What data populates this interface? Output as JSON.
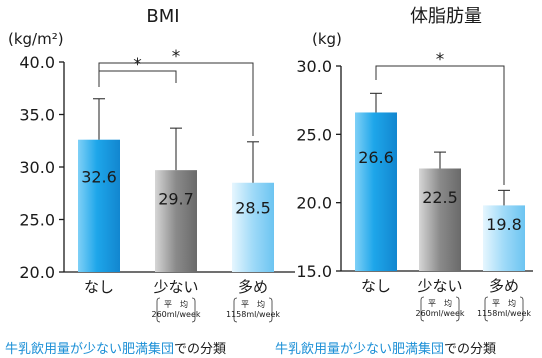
{
  "colors": {
    "bar_none": "#1ea6ea",
    "bar_less": "#8a8a8a",
    "bar_more": "#8fd3f7",
    "axis": "#1a1a1a",
    "caption_blue": "#1b8fd6"
  },
  "chart_data": [
    {
      "type": "bar",
      "title": "BMI",
      "unit": "(kg/m²)",
      "categories": [
        "なし",
        "少ない",
        "多め"
      ],
      "category_notes": [
        "",
        "平　均 260ml/week",
        "平　均 1158ml/week"
      ],
      "values": [
        32.6,
        29.7,
        28.5
      ],
      "value_labels": [
        "32.6",
        "29.7",
        "28.5"
      ],
      "error": [
        3.9,
        4.0,
        3.9
      ],
      "ylim": [
        20.0,
        40.0
      ],
      "yticks": [
        "20.0",
        "25.0",
        "30.0",
        "35.0",
        "40.0"
      ],
      "significance": [
        {
          "from": 0,
          "to": 1,
          "label": "*"
        },
        {
          "from": 0,
          "to": 2,
          "label": "*"
        }
      ],
      "caption_parts": [
        {
          "text": "牛乳飲用量が少ない肥満集団",
          "color": "blue"
        },
        {
          "text": "での分類",
          "color": "dark"
        }
      ]
    },
    {
      "type": "bar",
      "title": "体脂肪量",
      "unit": "(kg)",
      "categories": [
        "なし",
        "少ない",
        "多め"
      ],
      "category_notes": [
        "",
        "平　均 260ml/week",
        "平　均 1158ml/week"
      ],
      "values": [
        26.6,
        22.5,
        19.8
      ],
      "value_labels": [
        "26.6",
        "22.5",
        "19.8"
      ],
      "error": [
        1.4,
        1.2,
        1.1
      ],
      "ylim": [
        15.0,
        30.0
      ],
      "yticks": [
        "15.0",
        "20.0",
        "25.0",
        "30.0"
      ],
      "significance": [
        {
          "from": 0,
          "to": 2,
          "label": "*"
        }
      ],
      "caption_parts": [
        {
          "text": "牛乳飲用量が少ない肥満集団",
          "color": "blue"
        },
        {
          "text": "での分類",
          "color": "dark"
        }
      ]
    }
  ]
}
